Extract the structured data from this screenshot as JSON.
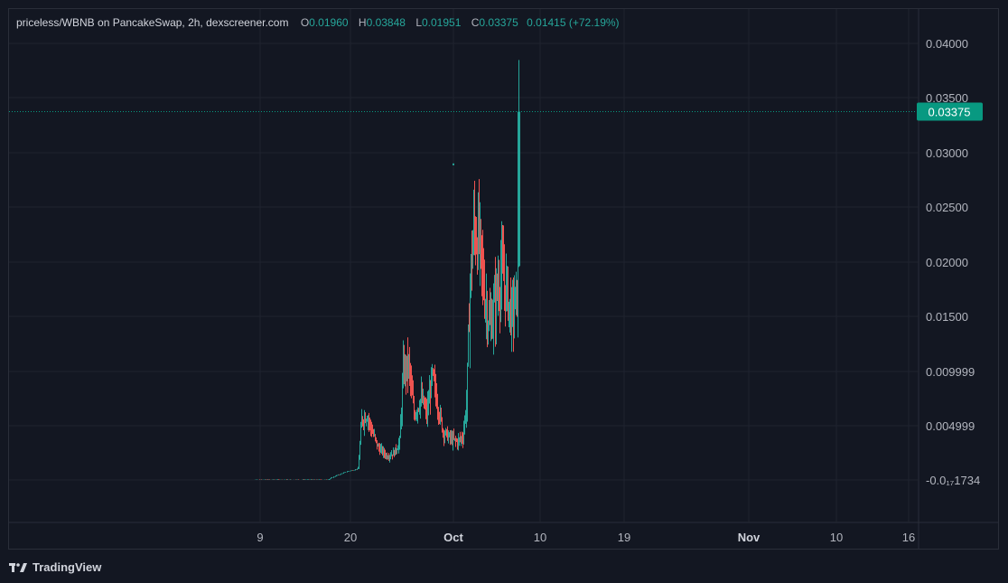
{
  "header": {
    "symbol": "priceless/WBNB on PancakeSwap, 2h, dexscreener.com",
    "o_label": "O",
    "o_value": "0.01960",
    "h_label": "H",
    "h_value": "0.03848",
    "l_label": "L",
    "l_value": "0.01951",
    "c_label": "C",
    "c_value": "0.03375",
    "change": "0.01415 (+72.19%)"
  },
  "footer": {
    "brand": "TradingView",
    "logo_icon": "tradingview-logo-icon"
  },
  "colors": {
    "up": "#26a69a",
    "down": "#ef5350",
    "price_tag": "#089981",
    "grid": "#1f232f",
    "text": "#b2b5be"
  },
  "chart_data": {
    "type": "candlestick",
    "title": "priceless/WBNB on PancakeSwap, 2h, dexscreener.com",
    "y_ticks": [
      "0.04000",
      "0.03500",
      "0.03000",
      "0.02500",
      "0.02000",
      "0.01500",
      "0.009999",
      "0.004999",
      "-0.0₁₇1734"
    ],
    "x_ticks": [
      "9",
      "20",
      "Oct",
      "10",
      "19",
      "Nov",
      "10",
      "16"
    ],
    "bold_x_ticks": [
      "Oct",
      "Nov"
    ],
    "ylim": [
      -0.0034,
      0.042
    ],
    "last_price": "0.03375",
    "ohlc_last": {
      "open": 0.0196,
      "high": 0.03848,
      "low": 0.01951,
      "close": 0.03375
    },
    "approx_close_path": [
      [
        "Sep 9",
        0.0
      ],
      [
        "Sep 14",
        0.0
      ],
      [
        "Sep 18",
        0.0003
      ],
      [
        "Sep 20",
        0.001
      ],
      [
        "Sep 21",
        0.006
      ],
      [
        "Sep 22",
        0.0045
      ],
      [
        "Sep 24",
        0.003
      ],
      [
        "Sep 25",
        0.004
      ],
      [
        "Sep 26",
        0.01
      ],
      [
        "Sep 27",
        0.007
      ],
      [
        "Sep 28",
        0.0085
      ],
      [
        "Sep 29",
        0.005
      ],
      [
        "Sep 30",
        0.0055
      ],
      [
        "Oct 1",
        0.0045
      ],
      [
        "Oct 2",
        0.007
      ],
      [
        "Oct 3",
        0.023
      ],
      [
        "Oct 4",
        0.02
      ],
      [
        "Oct 5",
        0.016
      ],
      [
        "Oct 6",
        0.018
      ],
      [
        "Oct 7",
        0.017
      ],
      [
        "Oct 8",
        0.0196
      ],
      [
        "Oct 8",
        0.03375
      ]
    ],
    "grid": true
  }
}
